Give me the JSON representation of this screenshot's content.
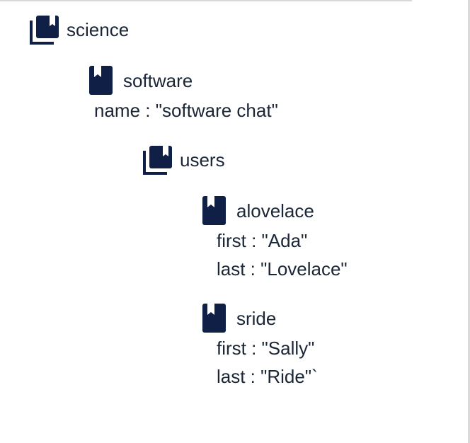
{
  "colors": {
    "icon": "#0f1f45",
    "text": "#1a2535",
    "rule": "#d9d9d9"
  },
  "tree": {
    "root": {
      "label": "science",
      "icon": "collection-icon"
    },
    "software": {
      "label": "software",
      "icon": "document-icon",
      "fields": [
        "name : \"software chat\""
      ]
    },
    "users": {
      "label": "users",
      "icon": "collection-icon"
    },
    "alovelace": {
      "label": "alovelace",
      "icon": "document-icon",
      "fields": [
        "first : \"Ada\"",
        "last : \"Lovelace\""
      ]
    },
    "sride": {
      "label": "sride",
      "icon": "document-icon",
      "fields": [
        "first : \"Sally\"",
        "last : \"Ride\"`"
      ]
    }
  }
}
